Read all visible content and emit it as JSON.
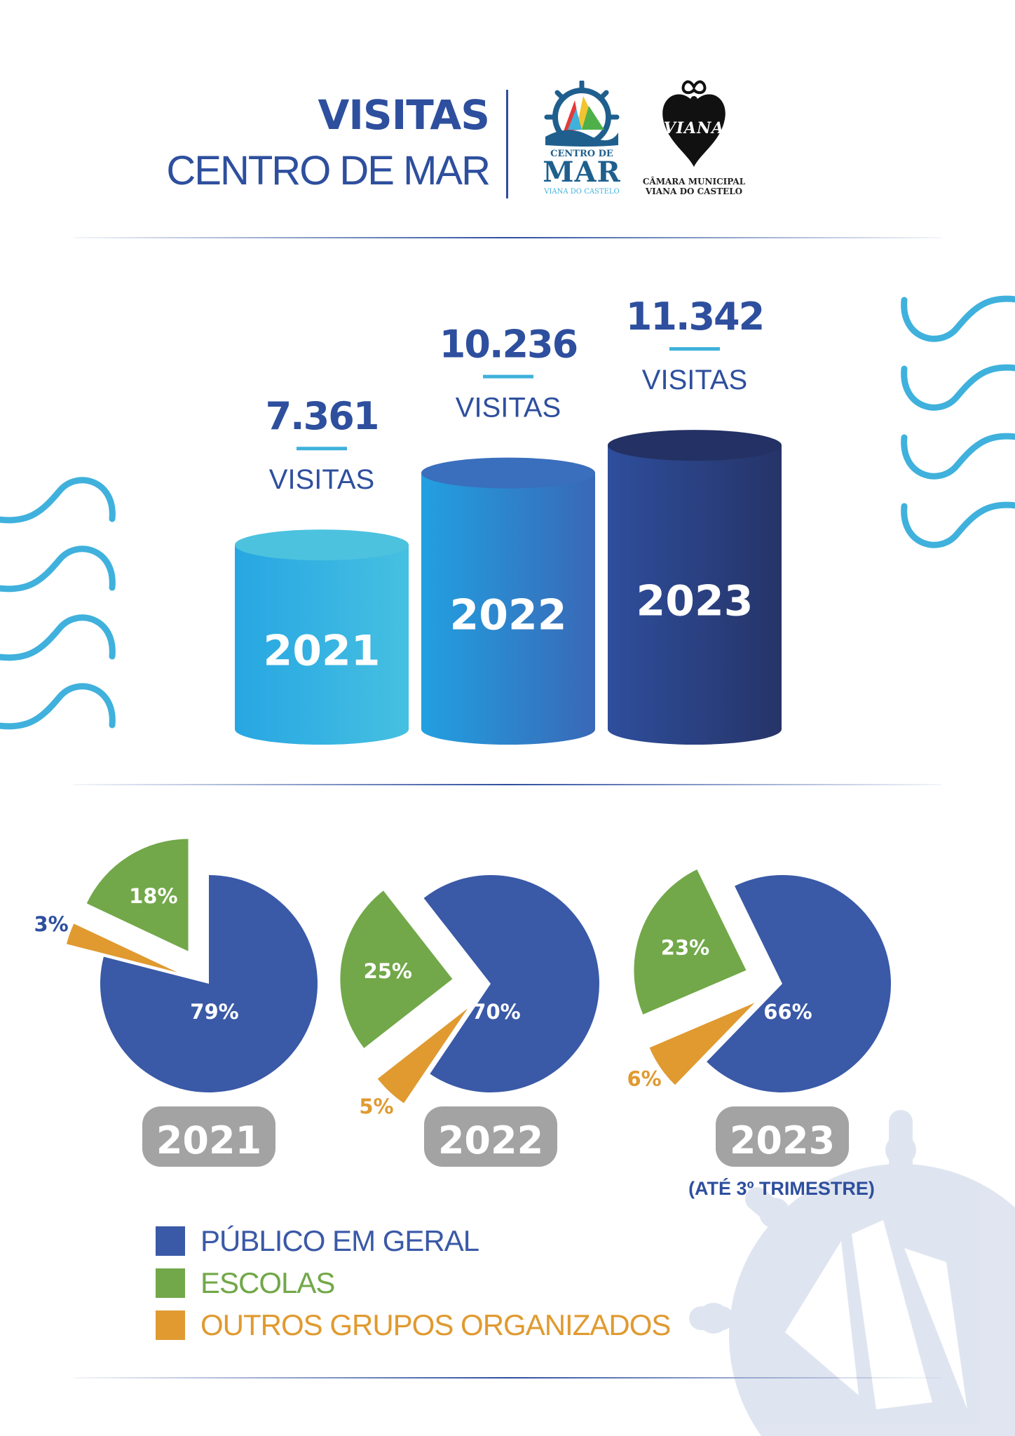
{
  "header": {
    "title_bold": "VISITAS",
    "title_light": "CENTRO DE MAR",
    "logo_centro": {
      "line1": "CENTRO DE",
      "line2": "MAR",
      "line3": "VIANA DO CASTELO"
    },
    "logo_camara": {
      "word": "VIANA",
      "line1": "CÂMARA MUNICIPAL",
      "line2": "VIANA DO CASTELO"
    }
  },
  "colors": {
    "primary": "#2e4f9e",
    "publico": "#3a59a7",
    "escolas": "#72a849",
    "outros": "#e09a30",
    "wave": "#3fb1dc",
    "year_badge": "#a3a3a3",
    "cyl_2021": "#33b4e4",
    "cyl_2022": "#2f7fcf",
    "cyl_2023": "#2a3e8a"
  },
  "chart_data": [
    {
      "type": "bar",
      "categories": [
        "2021",
        "2022",
        "2023"
      ],
      "values": [
        7361,
        10236,
        11342
      ],
      "value_labels": [
        "7.361",
        "10.236",
        "11.342"
      ],
      "unit_label": "VISITAS"
    },
    {
      "type": "pie",
      "year": "2021",
      "note": "",
      "slices": [
        {
          "category": "PÚBLICO EM GERAL",
          "value": 79,
          "label": "79%"
        },
        {
          "category": "ESCOLAS",
          "value": 18,
          "label": "18%"
        },
        {
          "category": "OUTROS GRUPOS ORGANIZADOS",
          "value": 3,
          "label": "3%"
        }
      ]
    },
    {
      "type": "pie",
      "year": "2022",
      "note": "",
      "slices": [
        {
          "category": "PÚBLICO EM GERAL",
          "value": 70,
          "label": "70%"
        },
        {
          "category": "ESCOLAS",
          "value": 25,
          "label": "25%"
        },
        {
          "category": "OUTROS GRUPOS ORGANIZADOS",
          "value": 5,
          "label": "5%"
        }
      ]
    },
    {
      "type": "pie",
      "year": "2023",
      "note": "(ATÉ 3º TRIMESTRE)",
      "slices": [
        {
          "category": "PÚBLICO EM GERAL",
          "value": 66,
          "label": "66%"
        },
        {
          "category": "ESCOLAS",
          "value": 23,
          "label": "23%"
        },
        {
          "category": "OUTROS GRUPOS ORGANIZADOS",
          "value": 6,
          "label": "6%"
        }
      ]
    }
  ],
  "legend": [
    {
      "label": "PÚBLICO EM GERAL",
      "color": "#3a59a7"
    },
    {
      "label": "ESCOLAS",
      "color": "#72a849"
    },
    {
      "label": "OUTROS GRUPOS ORGANIZADOS",
      "color": "#e09a30"
    }
  ]
}
